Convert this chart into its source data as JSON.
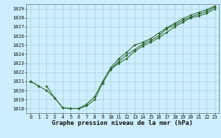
{
  "x": [
    0,
    1,
    2,
    3,
    4,
    5,
    6,
    7,
    8,
    9,
    10,
    11,
    12,
    13,
    14,
    15,
    16,
    17,
    18,
    19,
    20,
    21,
    22,
    23
  ],
  "line1": [
    1021.0,
    1020.5,
    1020.0,
    1019.2,
    1018.1,
    1018.0,
    1018.0,
    1018.3,
    1019.0,
    1020.8,
    1022.3,
    1023.0,
    1023.5,
    1024.3,
    1024.9,
    1025.3,
    1025.8,
    1026.4,
    1027.0,
    1027.5,
    1028.0,
    1028.2,
    1028.5,
    1029.0
  ],
  "line2": [
    1021.0,
    1020.5,
    null,
    null,
    null,
    null,
    null,
    null,
    null,
    null,
    1022.3,
    1023.2,
    1023.9,
    1024.5,
    1025.1,
    1025.5,
    1026.0,
    1026.8,
    1027.2,
    1027.7,
    1028.1,
    1028.4,
    1028.7,
    1029.2
  ],
  "line3": [
    1021.0,
    null,
    1020.5,
    1019.2,
    1018.1,
    1018.0,
    1018.0,
    1018.5,
    1019.3,
    1021.0,
    1022.5,
    1023.5,
    1024.2,
    1025.0,
    1025.3,
    1025.7,
    1026.3,
    1026.9,
    1027.4,
    1027.9,
    1028.3,
    1028.6,
    1028.9,
    1029.3
  ],
  "ylim": [
    1017.5,
    1029.5
  ],
  "xlim": [
    -0.5,
    23.5
  ],
  "yticks": [
    1018,
    1019,
    1020,
    1021,
    1022,
    1023,
    1024,
    1025,
    1026,
    1027,
    1028,
    1029
  ],
  "xticks": [
    0,
    1,
    2,
    3,
    4,
    5,
    6,
    7,
    8,
    9,
    10,
    11,
    12,
    13,
    14,
    15,
    16,
    17,
    18,
    19,
    20,
    21,
    22,
    23
  ],
  "xlabel": "Graphe pression niveau de la mer (hPa)",
  "line_color": "#2d6a2d",
  "bg_color": "#cceeff",
  "grid_color": "#aacfcf",
  "marker": "D",
  "marker_size": 1.8,
  "line_width": 0.8,
  "xlabel_fontsize": 6.5,
  "tick_fontsize": 5.0
}
